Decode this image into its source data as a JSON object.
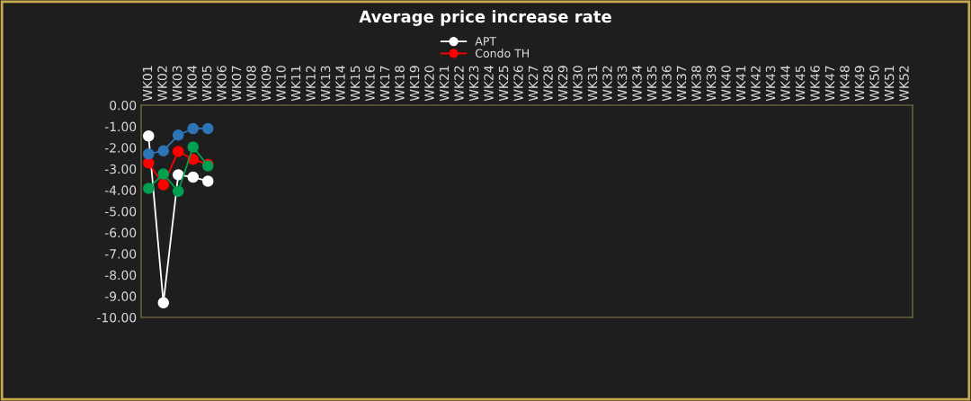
{
  "chart_data": {
    "type": "line",
    "title": "Average price increase rate",
    "categories": [
      "WK01",
      "WK02",
      "WK03",
      "WK04",
      "WK05",
      "WK06",
      "WK07",
      "WK08",
      "WK09",
      "WK10",
      "WK11",
      "WK12",
      "WK13",
      "WK14",
      "WK15",
      "WK16",
      "WK17",
      "WK18",
      "WK19",
      "WK20",
      "WK21",
      "WK22",
      "WK23",
      "WK24",
      "WK25",
      "WK26",
      "WK27",
      "WK28",
      "WK29",
      "WK30",
      "WK31",
      "WK32",
      "WK33",
      "WK34",
      "WK35",
      "WK36",
      "WK37",
      "WK38",
      "WK39",
      "WK40",
      "WK41",
      "WK42",
      "WK43",
      "WK44",
      "WK45",
      "WK46",
      "WK47",
      "WK48",
      "WK49",
      "WK50",
      "WK51",
      "WK52"
    ],
    "series": [
      {
        "name": "APT",
        "color": "#ffffff",
        "values": [
          -1.45,
          -9.31,
          -3.28,
          -3.39,
          -3.58,
          null,
          null,
          null,
          null,
          null,
          null,
          null,
          null,
          null,
          null,
          null,
          null,
          null,
          null,
          null,
          null,
          null,
          null,
          null,
          null,
          null,
          null,
          null,
          null,
          null,
          null,
          null,
          null,
          null,
          null,
          null,
          null,
          null,
          null,
          null,
          null,
          null,
          null,
          null,
          null,
          null,
          null,
          null,
          null,
          null,
          null,
          null
        ]
      },
      {
        "name": "Condo TH",
        "color": "#ff0000",
        "values": [
          -2.72,
          -3.75,
          -2.18,
          -2.55,
          -2.79,
          null,
          null,
          null,
          null,
          null,
          null,
          null,
          null,
          null,
          null,
          null,
          null,
          null,
          null,
          null,
          null,
          null,
          null,
          null,
          null,
          null,
          null,
          null,
          null,
          null,
          null,
          null,
          null,
          null,
          null,
          null,
          null,
          null,
          null,
          null,
          null,
          null,
          null,
          null,
          null,
          null,
          null,
          null,
          null,
          null,
          null,
          null
        ]
      },
      {
        "color": "#2e75b6",
        "values": [
          -2.3,
          -2.15,
          -1.41,
          -1.1,
          -1.1,
          null,
          null,
          null,
          null,
          null,
          null,
          null,
          null,
          null,
          null,
          null,
          null,
          null,
          null,
          null,
          null,
          null,
          null,
          null,
          null,
          null,
          null,
          null,
          null,
          null,
          null,
          null,
          null,
          null,
          null,
          null,
          null,
          null,
          null,
          null,
          null,
          null,
          null,
          null,
          null,
          null,
          null,
          null,
          null,
          null,
          null,
          null
        ]
      },
      {
        "color": "#00a050",
        "values": [
          -3.92,
          -3.24,
          -4.06,
          -1.97,
          -2.86,
          null,
          null,
          null,
          null,
          null,
          null,
          null,
          null,
          null,
          null,
          null,
          null,
          null,
          null,
          null,
          null,
          null,
          null,
          null,
          null,
          null,
          null,
          null,
          null,
          null,
          null,
          null,
          null,
          null,
          null,
          null,
          null,
          null,
          null,
          null,
          null,
          null,
          null,
          null,
          null,
          null,
          null,
          null,
          null,
          null,
          null,
          null
        ]
      }
    ],
    "ylim": [
      -10,
      0
    ],
    "yticks": [
      {
        "value": 0,
        "label": "0.00"
      },
      {
        "value": -1,
        "label": "-1.00"
      },
      {
        "value": -2,
        "label": "-2.00"
      },
      {
        "value": -3,
        "label": "-3.00"
      },
      {
        "value": -4,
        "label": "-4.00"
      },
      {
        "value": -5,
        "label": "-5.00"
      },
      {
        "value": -6,
        "label": "-6.00"
      },
      {
        "value": -7,
        "label": "-7.00"
      },
      {
        "value": -8,
        "label": "-8.00"
      },
      {
        "value": -9,
        "label": "-9.00"
      },
      {
        "value": -10,
        "label": "-10.00"
      }
    ],
    "grid": false,
    "legend": "top",
    "marker": "circle",
    "line_style": "solid"
  }
}
